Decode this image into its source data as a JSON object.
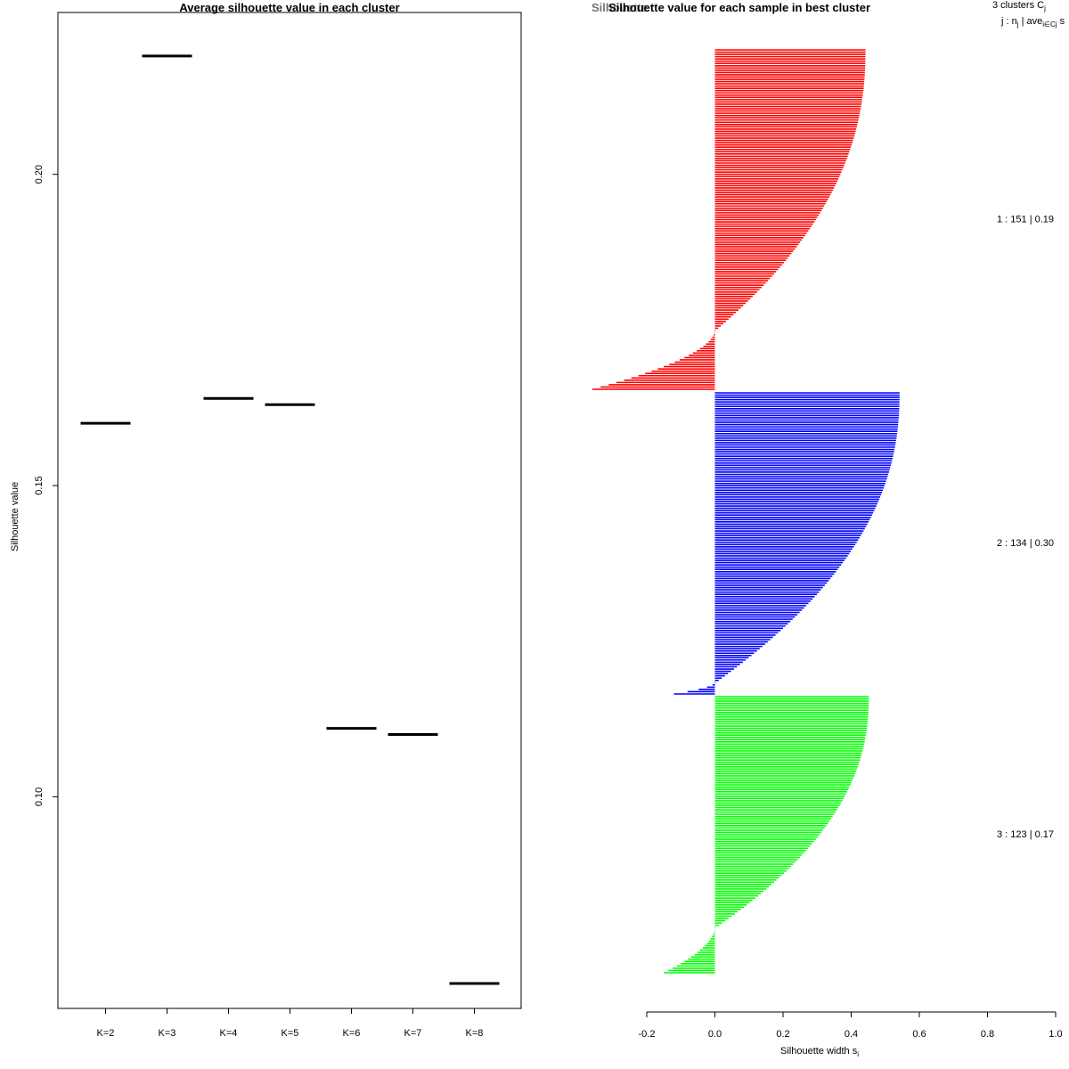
{
  "charts": {
    "left": {
      "type": "scatter",
      "title": "Average silhouette value in each cluster",
      "ylabel": "Silhouette value",
      "xlabel": "",
      "categories": [
        "K=2",
        "K=3",
        "K=4",
        "K=5",
        "K=6",
        "K=7",
        "K=8"
      ],
      "values": [
        0.16,
        0.219,
        0.164,
        0.163,
        0.111,
        0.11,
        0.07
      ],
      "ylim": [
        0.066,
        0.226
      ],
      "yticks": [
        0.1,
        0.15,
        0.2
      ],
      "ytick_labels": [
        "0.10",
        "0.15",
        "0.20"
      ]
    },
    "right": {
      "type": "bar",
      "title": "Silhouette value for each sample in best cluster",
      "title_overlap_text": "Silhouette",
      "xlabel": "Silhouette width s",
      "xlabel_sub": "i",
      "xlim": [
        -0.2,
        1.0
      ],
      "xticks": [
        -0.2,
        0.0,
        0.2,
        0.4,
        0.6,
        0.8,
        1.0
      ],
      "xtick_labels": [
        "-0.2",
        "0.0",
        "0.2",
        "0.4",
        "0.6",
        "0.8",
        "1.0"
      ],
      "legend_header_1": "3  clusters  C",
      "legend_header_1_sub": "j",
      "legend_header_2": "j :  n",
      "legend_header_2_sub": "j",
      "legend_header_2_mid": " | ave",
      "legend_header_2_sub2": "i∈Cj",
      "legend_header_2_tail": "  s",
      "clusters": [
        {
          "label": "1 :   151  |  0.19",
          "n": 151,
          "avg": 0.19,
          "color": "#ff0000",
          "max": 0.44,
          "min": -0.36,
          "neg_count": 26
        },
        {
          "label": "2 :   134  |  0.30",
          "n": 134,
          "avg": 0.3,
          "color": "#0000ff",
          "max": 0.54,
          "min": -0.12,
          "neg_count": 5
        },
        {
          "label": "3 :   123  |  0.17",
          "n": 123,
          "avg": 0.17,
          "color": "#00ff00",
          "max": 0.45,
          "min": -0.15,
          "neg_count": 20
        }
      ]
    }
  }
}
